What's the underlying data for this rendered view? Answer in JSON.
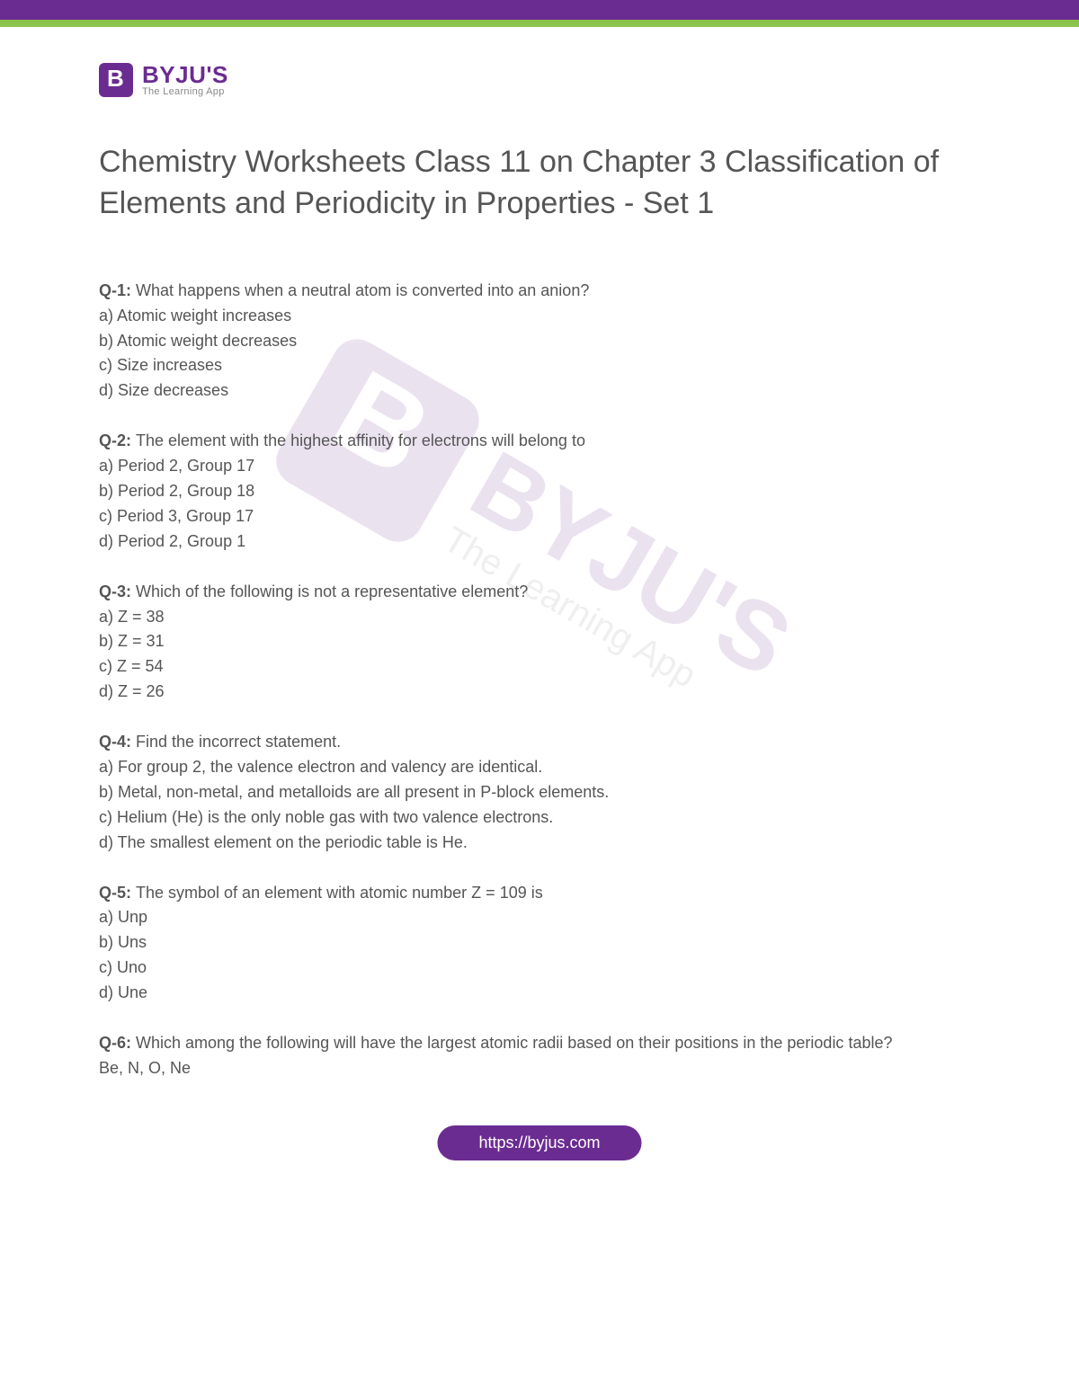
{
  "brand": {
    "name": "BYJU'S",
    "tagline": "The Learning App"
  },
  "title": "Chemistry Worksheets Class 11 on Chapter 3 Classification of Elements and Periodicity in Properties - Set 1",
  "footer_url": "https://byjus.com",
  "questions": [
    {
      "num": "Q-1:",
      "text": "What happens when a neutral atom is converted into an anion?",
      "options": [
        "a) Atomic weight increases",
        "b) Atomic weight decreases",
        "c) Size increases",
        "d) Size decreases"
      ]
    },
    {
      "num": "Q-2:",
      "text": "The element with the highest affinity for electrons will belong to",
      "options": [
        "a) Period 2, Group 17",
        "b) Period 2, Group 18",
        "c) Period 3, Group 17",
        "d) Period 2, Group 1"
      ]
    },
    {
      "num": "Q-3:",
      "text": "Which of the following is not a representative element?",
      "options": [
        "a) Z = 38",
        "b) Z = 31",
        "c) Z = 54",
        "d) Z = 26"
      ]
    },
    {
      "num": "Q-4:",
      "text": "Find the incorrect statement.",
      "options": [
        "a) For group 2, the valence electron and valency are identical.",
        "b) Metal, non-metal, and metalloids are all present in P-block elements.",
        "c) Helium (He) is the only noble gas with two valence electrons.",
        "d) The smallest element on the periodic table is He."
      ]
    },
    {
      "num": "Q-5:",
      "text": "The symbol of an element with atomic number Z = 109 is",
      "options": [
        "a) Unp",
        "b) Uns",
        "c) Uno",
        "d) Une"
      ]
    },
    {
      "num": "Q-6:",
      "text": "Which among the following will have the largest atomic radii based on their positions in the periodic table?",
      "options": [
        "Be, N, O, Ne"
      ]
    }
  ],
  "colors": {
    "brand_purple": "#6b2c91",
    "accent_green": "#8bc34a",
    "title_text": "#555555",
    "body_text": "#555555",
    "tagline_text": "#888888",
    "background": "#ffffff"
  },
  "typography": {
    "title_fontsize": 34,
    "body_fontsize": 18,
    "logo_name_fontsize": 26,
    "logo_tag_fontsize": 11,
    "footer_fontsize": 18
  }
}
